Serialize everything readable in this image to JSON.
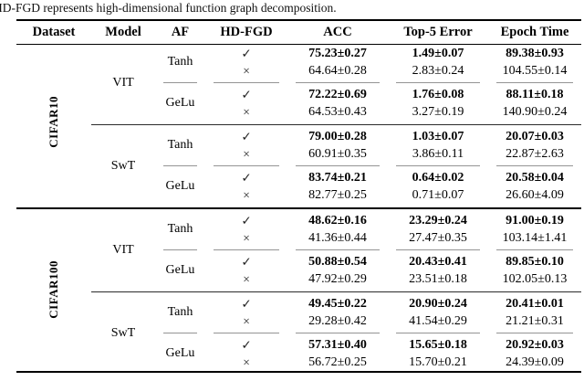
{
  "page": {
    "caption_line": "HD-FGD represents high-dimensional function graph decomposition."
  },
  "table": {
    "headers": [
      "Dataset",
      "Model",
      "AF",
      "HD-FGD",
      "ACC",
      "Top-5 Error",
      "Epoch Time"
    ],
    "sections": [
      {
        "label": "CIFAR10",
        "models": [
          {
            "label": "VIT",
            "afs": [
              {
                "label": "Tanh",
                "rows": [
                  {
                    "hdfgd": "✓",
                    "acc": "75.23±0.27",
                    "top5": "1.49±0.07",
                    "epoch": "89.38±0.93"
                  },
                  {
                    "hdfgd": "×",
                    "acc": "64.64±0.28",
                    "top5": "2.83±0.24",
                    "epoch": "104.55±0.14"
                  }
                ]
              },
              {
                "label": "GeLu",
                "rows": [
                  {
                    "hdfgd": "✓",
                    "acc": "72.22±0.69",
                    "top5": "1.76±0.08",
                    "epoch": "88.11±0.18"
                  },
                  {
                    "hdfgd": "×",
                    "acc": "64.53±0.43",
                    "top5": "3.27±0.19",
                    "epoch": "140.90±0.24"
                  }
                ]
              }
            ]
          },
          {
            "label": "SwT",
            "afs": [
              {
                "label": "Tanh",
                "rows": [
                  {
                    "hdfgd": "✓",
                    "acc": "79.00±0.28",
                    "top5": "1.03±0.07",
                    "epoch": "20.07±0.03"
                  },
                  {
                    "hdfgd": "×",
                    "acc": "60.91±0.35",
                    "top5": "3.86±0.11",
                    "epoch": "22.87±2.63"
                  }
                ]
              },
              {
                "label": "GeLu",
                "rows": [
                  {
                    "hdfgd": "✓",
                    "acc": "83.74±0.21",
                    "top5": "0.64±0.02",
                    "epoch": "20.58±0.04"
                  },
                  {
                    "hdfgd": "×",
                    "acc": "82.77±0.25",
                    "top5": "0.71±0.07",
                    "epoch": "26.60±4.09"
                  }
                ]
              }
            ]
          }
        ]
      },
      {
        "label": "CIFAR100",
        "models": [
          {
            "label": "VIT",
            "afs": [
              {
                "label": "Tanh",
                "rows": [
                  {
                    "hdfgd": "✓",
                    "acc": "48.62±0.16",
                    "top5": "23.29±0.24",
                    "epoch": "91.00±0.19"
                  },
                  {
                    "hdfgd": "×",
                    "acc": "41.36±0.44",
                    "top5": "27.47±0.35",
                    "epoch": "103.14±1.41"
                  }
                ]
              },
              {
                "label": "GeLu",
                "rows": [
                  {
                    "hdfgd": "✓",
                    "acc": "50.88±0.54",
                    "top5": "20.43±0.41",
                    "epoch": "89.85±0.10"
                  },
                  {
                    "hdfgd": "×",
                    "acc": "47.92±0.29",
                    "top5": "23.51±0.18",
                    "epoch": "102.05±0.13"
                  }
                ]
              }
            ]
          },
          {
            "label": "SwT",
            "afs": [
              {
                "label": "Tanh",
                "rows": [
                  {
                    "hdfgd": "✓",
                    "acc": "49.45±0.22",
                    "top5": "20.90±0.24",
                    "epoch": "20.41±0.01"
                  },
                  {
                    "hdfgd": "×",
                    "acc": "29.28±0.42",
                    "top5": "41.54±0.29",
                    "epoch": "21.21±0.31"
                  }
                ]
              },
              {
                "label": "GeLu",
                "rows": [
                  {
                    "hdfgd": "✓",
                    "acc": "57.31±0.40",
                    "top5": "15.65±0.18",
                    "epoch": "20.92±0.03"
                  },
                  {
                    "hdfgd": "×",
                    "acc": "56.72±0.25",
                    "top5": "15.70±0.21",
                    "epoch": "24.39±0.09"
                  }
                ]
              }
            ]
          }
        ]
      }
    ]
  }
}
